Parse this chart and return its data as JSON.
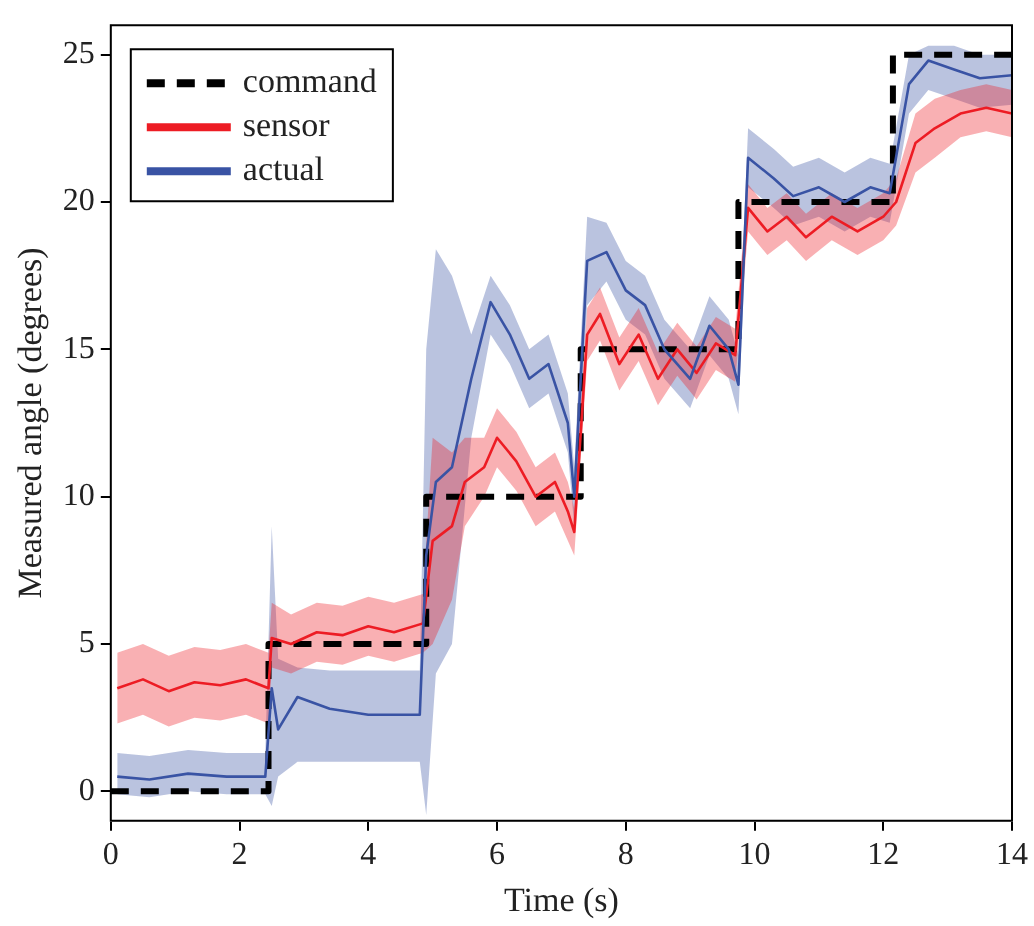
{
  "chart_data": {
    "type": "line",
    "xlabel": "Time (s)",
    "ylabel": "Measured angle (degrees)",
    "xlim": [
      0,
      14
    ],
    "xticks": [
      0,
      2,
      4,
      6,
      8,
      10,
      12,
      14
    ],
    "ylim": [
      -1,
      26
    ],
    "yticks": [
      0,
      5,
      10,
      15,
      20,
      25
    ],
    "grid": false,
    "legend": "top left",
    "marker": "none",
    "series": [
      {
        "name": "command",
        "type": "step",
        "color": "#000000",
        "line_style": "dashed",
        "x": [
          0,
          2.45,
          4.9,
          7.3,
          9.75,
          12.15,
          14
        ],
        "values": [
          0,
          5,
          10,
          15,
          20,
          25,
          25
        ]
      },
      {
        "name": "sensor",
        "type": "line",
        "color": "#ed1c24",
        "line_style": "solid",
        "x": [
          0.1,
          0.5,
          0.9,
          1.3,
          1.7,
          2.1,
          2.45,
          2.5,
          2.8,
          3.2,
          3.6,
          4.0,
          4.4,
          4.85,
          5.0,
          5.3,
          5.5,
          5.8,
          6.0,
          6.3,
          6.6,
          6.9,
          7.1,
          7.2,
          7.4,
          7.6,
          7.9,
          8.2,
          8.5,
          8.8,
          9.1,
          9.4,
          9.7,
          9.9,
          10.2,
          10.5,
          10.8,
          11.2,
          11.6,
          12.0,
          12.2,
          12.5,
          12.8,
          13.2,
          13.6,
          14.0
        ],
        "values": [
          3.5,
          3.8,
          3.4,
          3.7,
          3.6,
          3.8,
          3.5,
          5.2,
          5.0,
          5.4,
          5.3,
          5.6,
          5.4,
          5.7,
          8.5,
          9.0,
          10.5,
          11.0,
          12.0,
          11.2,
          10.0,
          10.5,
          9.5,
          8.8,
          15.5,
          16.2,
          14.5,
          15.5,
          14.0,
          15.0,
          14.2,
          15.2,
          14.8,
          19.8,
          19.0,
          19.5,
          18.8,
          19.5,
          19.0,
          19.5,
          20.0,
          22.0,
          22.5,
          23.0,
          23.2,
          23.0
        ],
        "lower": [
          2.3,
          2.6,
          2.2,
          2.5,
          2.4,
          2.6,
          2.3,
          4.2,
          4.0,
          4.4,
          4.3,
          4.6,
          4.4,
          4.7,
          5.0,
          6.5,
          9.0,
          10.0,
          11.0,
          10.2,
          9.0,
          9.5,
          8.5,
          8.0,
          14.6,
          15.3,
          13.6,
          14.6,
          13.1,
          14.1,
          13.3,
          14.3,
          13.9,
          19.0,
          18.2,
          18.7,
          18.0,
          18.7,
          18.2,
          18.7,
          19.2,
          21.0,
          21.5,
          22.2,
          22.4,
          22.2
        ],
        "upper": [
          4.7,
          5.0,
          4.6,
          4.9,
          4.8,
          5.0,
          4.7,
          6.4,
          6.0,
          6.4,
          6.3,
          6.6,
          6.4,
          6.7,
          12.0,
          11.5,
          12.0,
          12.0,
          13.0,
          12.2,
          11.0,
          11.5,
          10.5,
          9.6,
          16.4,
          17.1,
          15.4,
          16.4,
          14.9,
          15.9,
          15.1,
          16.1,
          15.7,
          20.6,
          19.8,
          20.3,
          19.6,
          20.3,
          19.8,
          20.3,
          20.8,
          23.0,
          23.5,
          23.8,
          24.0,
          23.8
        ]
      },
      {
        "name": "actual",
        "type": "line",
        "color": "#3953a4",
        "line_style": "solid",
        "x": [
          0.1,
          0.6,
          1.2,
          1.8,
          2.4,
          2.5,
          2.6,
          2.9,
          3.4,
          4.0,
          4.8,
          4.9,
          5.05,
          5.3,
          5.6,
          5.9,
          6.2,
          6.5,
          6.8,
          7.1,
          7.2,
          7.4,
          7.7,
          8.0,
          8.3,
          8.6,
          9.0,
          9.3,
          9.6,
          9.75,
          9.9,
          10.3,
          10.6,
          11.0,
          11.4,
          11.8,
          12.1,
          12.4,
          12.7,
          13.1,
          13.5,
          14.0
        ],
        "values": [
          0.5,
          0.4,
          0.6,
          0.5,
          0.5,
          3.5,
          2.1,
          3.2,
          2.8,
          2.6,
          2.6,
          8.0,
          10.5,
          11.0,
          14.0,
          16.6,
          15.5,
          14.0,
          14.5,
          12.5,
          10.0,
          18.0,
          18.3,
          17.0,
          16.5,
          15.0,
          14.0,
          15.8,
          15.0,
          13.8,
          21.5,
          20.8,
          20.2,
          20.5,
          20.0,
          20.5,
          20.3,
          24.0,
          24.8,
          24.5,
          24.2,
          24.3
        ],
        "lower": [
          -0.1,
          -0.2,
          0.0,
          -0.1,
          -0.1,
          -0.5,
          0.5,
          1.0,
          1.0,
          1.0,
          1.0,
          -0.8,
          4.0,
          5.0,
          12.0,
          15.5,
          14.5,
          13.0,
          13.5,
          11.5,
          9.0,
          16.5,
          17.3,
          16.0,
          15.5,
          14.0,
          13.0,
          14.8,
          14.0,
          12.8,
          20.5,
          19.8,
          19.2,
          19.5,
          19.0,
          19.5,
          19.3,
          23.0,
          23.8,
          23.5,
          23.2,
          23.3
        ],
        "upper": [
          1.3,
          1.2,
          1.4,
          1.3,
          1.3,
          9.0,
          4.5,
          4.2,
          4.1,
          4.1,
          4.1,
          15.0,
          18.4,
          17.5,
          15.5,
          17.5,
          16.5,
          15.0,
          15.5,
          13.5,
          11.0,
          19.5,
          19.3,
          18.0,
          17.5,
          16.0,
          15.0,
          16.8,
          16.0,
          14.8,
          22.5,
          21.8,
          21.2,
          21.5,
          21.0,
          21.5,
          21.3,
          25.0,
          25.3,
          25.3,
          25.0,
          25.0
        ]
      }
    ]
  }
}
